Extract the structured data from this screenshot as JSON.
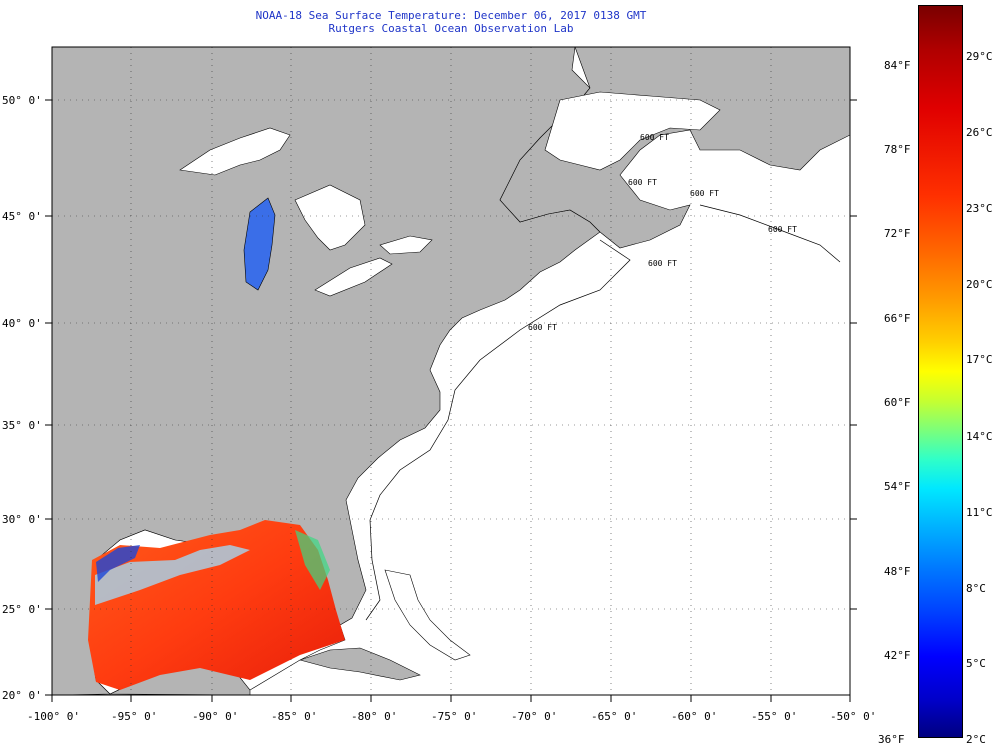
{
  "title": {
    "line1": "NOAA-18 Sea Surface Temperature:  December 06, 2017 0138 GMT",
    "line2": "Rutgers Coastal Ocean Observation Lab"
  },
  "map": {
    "lon_range": [
      -100,
      -50
    ],
    "lat_range": [
      20,
      52.3
    ],
    "lon_ticks": [
      "-100° 0'",
      "-95° 0'",
      "-90° 0'",
      "-85° 0'",
      "-80° 0'",
      "-75° 0'",
      "-70° 0'",
      "-65° 0'",
      "-60° 0'",
      "-55° 0'",
      "-50° 0'"
    ],
    "lat_ticks": [
      "50° 0'",
      "45° 0'",
      "40° 0'",
      "35° 0'",
      "30° 0'",
      "25° 0'",
      "20° 0'"
    ],
    "land_color": "#b4b4b4",
    "ocean_color": "#ffffff",
    "contour_labels": [
      "600 FT",
      "600 FT",
      "600 FT",
      "600 FT",
      "600 FT",
      "600 FT"
    ]
  },
  "colorbar": {
    "fahrenheit": [
      "84°F",
      "78°F",
      "72°F",
      "66°F",
      "60°F",
      "54°F",
      "48°F",
      "42°F",
      "36°F"
    ],
    "celsius": [
      "29°C",
      "26°C",
      "23°C",
      "20°C",
      "17°C",
      "14°C",
      "11°C",
      "8°C",
      "5°C",
      "2°C"
    ]
  }
}
